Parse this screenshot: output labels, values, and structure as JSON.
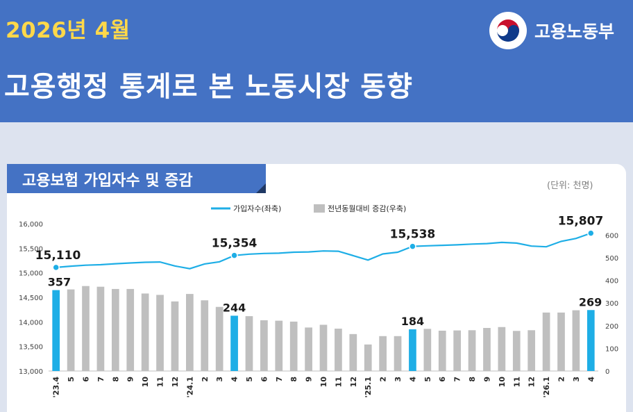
{
  "header": {
    "date": "2026년 4월",
    "title": "고용행정 통계로 본 노동시장 동향",
    "ministry": "고용노동부",
    "logo_icon": "taegeuk-emblem-icon"
  },
  "panel": {
    "title": "고용보험 가입자수 및 증감",
    "unit": "(단위: 천명)"
  },
  "colors": {
    "header_bg": "#4472c4",
    "date_text": "#ffd84a",
    "line": "#1eaee6",
    "bar_default": "#bfbfbf",
    "bar_highlight": "#1eaee6"
  },
  "chart_data": {
    "type": "bar",
    "legend": {
      "position": "top",
      "line_label": "가입자수(좌축)",
      "bar_label": "전년동월대비 증감(우축)"
    },
    "categories": [
      "'23.4",
      "5",
      "6",
      "7",
      "8",
      "9",
      "10",
      "11",
      "12",
      "'24.1",
      "2",
      "3",
      "4",
      "5",
      "6",
      "7",
      "8",
      "9",
      "10",
      "11",
      "12",
      "'25.1",
      "2",
      "3",
      "4",
      "5",
      "6",
      "7",
      "8",
      "9",
      "10",
      "11",
      "12",
      "'26.1",
      "2",
      "3",
      "4"
    ],
    "series": [
      {
        "name": "가입자수(좌축)",
        "type": "line",
        "axis": "left",
        "values": [
          15110,
          15135,
          15155,
          15165,
          15185,
          15200,
          15215,
          15220,
          15140,
          15085,
          15180,
          15225,
          15354,
          15380,
          15395,
          15400,
          15420,
          15425,
          15445,
          15440,
          15350,
          15260,
          15385,
          15420,
          15538,
          15550,
          15560,
          15570,
          15585,
          15595,
          15620,
          15605,
          15545,
          15530,
          15640,
          15700,
          15807
        ]
      },
      {
        "name": "전년동월대비 증감(우축)",
        "type": "bar",
        "axis": "right",
        "values": [
          357,
          360,
          375,
          372,
          362,
          362,
          342,
          336,
          307,
          340,
          312,
          283,
          244,
          242,
          224,
          222,
          218,
          192,
          204,
          187,
          163,
          117,
          154,
          154,
          184,
          186,
          178,
          179,
          180,
          190,
          194,
          177,
          180,
          258,
          258,
          268,
          269
        ]
      }
    ],
    "highlight_indices": [
      0,
      12,
      24,
      36
    ],
    "line_labels": [
      "15,110",
      "15,354",
      "15,538",
      "15,807"
    ],
    "bar_labels": [
      "357",
      "244",
      "184",
      "269"
    ],
    "left_axis": {
      "min": 13000,
      "max": 16000,
      "ticks": [
        "13,000",
        "13,500",
        "14,000",
        "14,500",
        "15,000",
        "15,500",
        "16,000"
      ]
    },
    "right_axis": {
      "min": 0,
      "max": 650,
      "ticks": [
        "0",
        "100",
        "200",
        "300",
        "400",
        "500",
        "600"
      ]
    }
  }
}
